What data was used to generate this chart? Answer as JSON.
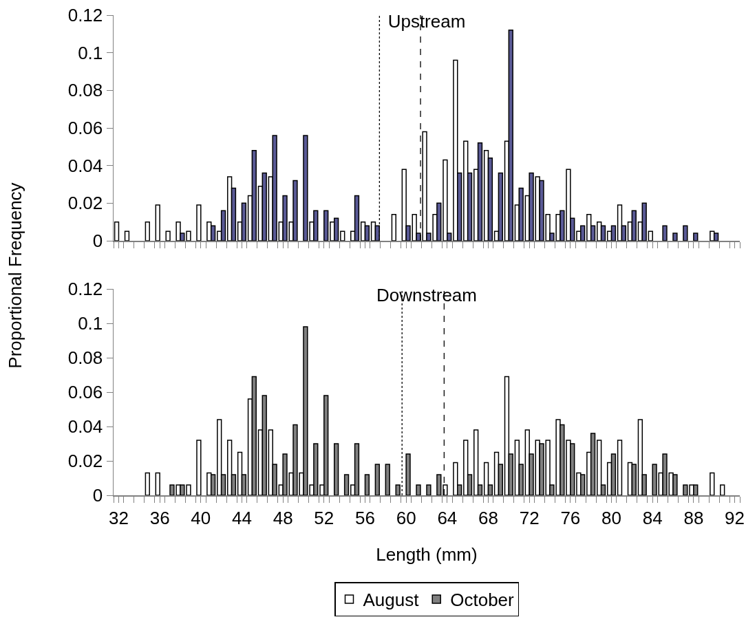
{
  "chart_data": [
    {
      "type": "bar",
      "title": "Upstream",
      "ylabel": "Proportional Frequency",
      "x": [
        32,
        33,
        34,
        35,
        36,
        37,
        38,
        39,
        40,
        41,
        42,
        43,
        44,
        45,
        46,
        47,
        48,
        49,
        50,
        51,
        52,
        53,
        54,
        55,
        56,
        57,
        58,
        59,
        60,
        61,
        62,
        63,
        64,
        65,
        66,
        67,
        68,
        69,
        70,
        71,
        72,
        73,
        74,
        75,
        76,
        77,
        78,
        79,
        80,
        81,
        82,
        83,
        84,
        85,
        86,
        87,
        88,
        89,
        90
      ],
      "series": [
        {
          "color": "#ffffff",
          "values": [
            0.01,
            0.005,
            null,
            0.01,
            0.019,
            0.005,
            0.01,
            0.005,
            0.019,
            0.01,
            0.005,
            0.034,
            0.01,
            0.024,
            0.029,
            0.034,
            0.01,
            0.01,
            null,
            0.01,
            null,
            0.01,
            0.005,
            0.005,
            0.01,
            0.01,
            null,
            0.014,
            0.038,
            0.014,
            0.058,
            0.014,
            0.043,
            0.096,
            0.053,
            0.038,
            0.048,
            0.005,
            0.053,
            0.019,
            0.024,
            0.034,
            0.014,
            0.014,
            0.038,
            0.005,
            0.014,
            0.01,
            0.005,
            0.019,
            0.01,
            0.01,
            0.005,
            null,
            null,
            null,
            null,
            null,
            0.005
          ]
        },
        {
          "color": "#5a5a96",
          "values": [
            null,
            null,
            null,
            null,
            null,
            null,
            0.004,
            null,
            null,
            0.008,
            0.016,
            0.028,
            0.02,
            0.048,
            0.036,
            0.056,
            0.024,
            0.032,
            0.056,
            0.016,
            0.016,
            0.012,
            null,
            0.024,
            0.008,
            0.008,
            null,
            null,
            0.008,
            0.004,
            0.004,
            0.02,
            0.004,
            0.036,
            0.036,
            0.052,
            0.044,
            0.036,
            0.112,
            0.028,
            0.036,
            0.032,
            0.004,
            0.016,
            0.012,
            0.008,
            0.008,
            0.008,
            0.008,
            0.008,
            0.016,
            0.02,
            null,
            0.008,
            0.004,
            0.008,
            0.004,
            null,
            0.004
          ]
        }
      ],
      "xlim": [
        31.5,
        92.5
      ],
      "xticks": [
        {
          "value": 31.5,
          "label": null
        },
        32,
        {
          "value": 32.5,
          "label": null
        },
        {
          "value": 33.5,
          "label": null
        },
        {
          "value": 34.5,
          "label": null
        },
        {
          "value": 35.5,
          "label": null
        },
        36,
        {
          "value": 36.5,
          "label": null
        },
        {
          "value": 37.5,
          "label": null
        },
        {
          "value": 38.5,
          "label": null
        },
        {
          "value": 39.5,
          "label": null
        },
        40,
        {
          "value": 40.5,
          "label": null
        },
        {
          "value": 41.5,
          "label": null
        },
        {
          "value": 42.5,
          "label": null
        },
        {
          "value": 43.5,
          "label": null
        },
        44,
        {
          "value": 44.5,
          "label": null
        },
        {
          "value": 45.5,
          "label": null
        },
        {
          "value": 46.5,
          "label": null
        },
        {
          "value": 47.5,
          "label": null
        },
        48,
        {
          "value": 48.5,
          "label": null
        },
        {
          "value": 49.5,
          "label": null
        },
        {
          "value": 50.5,
          "label": null
        },
        {
          "value": 51.5,
          "label": null
        },
        52,
        {
          "value": 52.5,
          "label": null
        },
        {
          "value": 53.5,
          "label": null
        },
        {
          "value": 54.5,
          "label": null
        },
        {
          "value": 55.5,
          "label": null
        },
        56,
        {
          "value": 56.5,
          "label": null
        },
        {
          "value": 57.5,
          "label": null
        },
        {
          "value": 58.5,
          "label": null
        },
        {
          "value": 59.5,
          "label": null
        },
        60,
        {
          "value": 60.5,
          "label": null
        },
        {
          "value": 61.5,
          "label": null
        },
        {
          "value": 62.5,
          "label": null
        },
        {
          "value": 63.5,
          "label": null
        },
        64,
        {
          "value": 64.5,
          "label": null
        },
        {
          "value": 65.5,
          "label": null
        },
        {
          "value": 66.5,
          "label": null
        },
        {
          "value": 67.5,
          "label": null
        },
        68,
        {
          "value": 68.5,
          "label": null
        },
        {
          "value": 69.5,
          "label": null
        },
        {
          "value": 70.5,
          "label": null
        },
        {
          "value": 71.5,
          "label": null
        },
        72,
        {
          "value": 72.5,
          "label": null
        },
        {
          "value": 73.5,
          "label": null
        },
        {
          "value": 74.5,
          "label": null
        },
        {
          "value": 75.5,
          "label": null
        },
        76,
        {
          "value": 76.5,
          "label": null
        },
        {
          "value": 77.5,
          "label": null
        },
        {
          "value": 78.5,
          "label": null
        },
        {
          "value": 79.5,
          "label": null
        },
        80,
        {
          "value": 80.5,
          "label": null
        },
        {
          "value": 81.5,
          "label": null
        },
        {
          "value": 82.5,
          "label": null
        },
        {
          "value": 83.5,
          "label": null
        },
        84,
        {
          "value": 84.5,
          "label": null
        },
        {
          "value": 85.5,
          "label": null
        },
        {
          "value": 86.5,
          "label": null
        },
        {
          "value": 87.5,
          "label": null
        },
        88,
        {
          "value": 88.5,
          "label": null
        },
        {
          "value": 89.5,
          "label": null
        },
        {
          "value": 90.5,
          "label": null
        },
        {
          "value": 91.5,
          "label": null
        },
        92,
        {
          "value": 92.5,
          "label": null
        }
      ],
      "ylim": [
        0,
        0.12
      ],
      "yticks": [
        0,
        0.02,
        0.04,
        0.06,
        0.08,
        0.1,
        0.12
      ],
      "tick_labels": "y",
      "grid": false,
      "ref_lines": [
        {
          "axis": "x",
          "value": 57.4,
          "color": "#000000",
          "line_style": "dotted"
        },
        {
          "axis": "x",
          "value": 61.4,
          "color": "#000000",
          "line_style": "dashed"
        }
      ]
    },
    {
      "type": "bar",
      "title": "Downstream",
      "xlabel": "Length (mm)",
      "x": [
        35,
        36,
        37,
        38,
        39,
        40,
        41,
        42,
        43,
        44,
        45,
        46,
        47,
        48,
        49,
        50,
        51,
        52,
        53,
        54,
        55,
        56,
        57,
        58,
        59,
        60,
        61,
        62,
        63,
        64,
        65,
        66,
        67,
        68,
        69,
        70,
        71,
        72,
        73,
        74,
        75,
        76,
        77,
        78,
        79,
        80,
        81,
        82,
        83,
        84,
        85,
        86,
        87,
        88,
        89,
        90,
        91
      ],
      "series": [
        {
          "name": "August",
          "color": "#ffffff",
          "values": [
            0.013,
            0.013,
            null,
            0.006,
            0.006,
            0.032,
            0.013,
            0.044,
            0.032,
            0.025,
            0.056,
            0.038,
            0.038,
            0.006,
            0.013,
            0.013,
            0.006,
            0.006,
            null,
            null,
            0.006,
            null,
            null,
            null,
            null,
            null,
            null,
            null,
            null,
            0.006,
            0.019,
            0.032,
            0.038,
            0.019,
            0.025,
            0.069,
            0.032,
            0.038,
            0.032,
            0.032,
            0.044,
            0.032,
            0.013,
            0.025,
            0.032,
            0.019,
            0.032,
            0.019,
            0.044,
            null,
            0.013,
            0.013,
            null,
            0.006,
            null,
            0.013,
            0.006
          ]
        },
        {
          "name": "October",
          "color": "#808080",
          "values": [
            null,
            null,
            0.006,
            0.006,
            null,
            null,
            0.012,
            0.012,
            0.012,
            0.012,
            0.069,
            0.058,
            0.018,
            0.024,
            0.041,
            0.098,
            0.03,
            0.058,
            0.03,
            0.012,
            0.03,
            0.012,
            0.018,
            0.018,
            0.006,
            0.024,
            0.006,
            0.006,
            0.012,
            null,
            0.006,
            0.012,
            0.006,
            0.006,
            0.018,
            0.024,
            0.018,
            0.024,
            0.03,
            0.006,
            0.041,
            0.03,
            0.012,
            0.036,
            0.006,
            0.024,
            null,
            0.018,
            0.012,
            0.018,
            0.024,
            0.012,
            0.006,
            0.006,
            null,
            null,
            null
          ]
        }
      ],
      "xlim": [
        31.5,
        92.5
      ],
      "xticks": [
        {
          "value": 31.5,
          "label": null
        },
        32,
        {
          "value": 32.5,
          "label": null
        },
        {
          "value": 33.5,
          "label": null
        },
        {
          "value": 34.5,
          "label": null
        },
        {
          "value": 35.5,
          "label": null
        },
        36,
        {
          "value": 36.5,
          "label": null
        },
        {
          "value": 37.5,
          "label": null
        },
        {
          "value": 38.5,
          "label": null
        },
        {
          "value": 39.5,
          "label": null
        },
        40,
        {
          "value": 40.5,
          "label": null
        },
        {
          "value": 41.5,
          "label": null
        },
        {
          "value": 42.5,
          "label": null
        },
        {
          "value": 43.5,
          "label": null
        },
        44,
        {
          "value": 44.5,
          "label": null
        },
        {
          "value": 45.5,
          "label": null
        },
        {
          "value": 46.5,
          "label": null
        },
        {
          "value": 47.5,
          "label": null
        },
        48,
        {
          "value": 48.5,
          "label": null
        },
        {
          "value": 49.5,
          "label": null
        },
        {
          "value": 50.5,
          "label": null
        },
        {
          "value": 51.5,
          "label": null
        },
        52,
        {
          "value": 52.5,
          "label": null
        },
        {
          "value": 53.5,
          "label": null
        },
        {
          "value": 54.5,
          "label": null
        },
        {
          "value": 55.5,
          "label": null
        },
        56,
        {
          "value": 56.5,
          "label": null
        },
        {
          "value": 57.5,
          "label": null
        },
        {
          "value": 58.5,
          "label": null
        },
        {
          "value": 59.5,
          "label": null
        },
        60,
        {
          "value": 60.5,
          "label": null
        },
        {
          "value": 61.5,
          "label": null
        },
        {
          "value": 62.5,
          "label": null
        },
        {
          "value": 63.5,
          "label": null
        },
        64,
        {
          "value": 64.5,
          "label": null
        },
        {
          "value": 65.5,
          "label": null
        },
        {
          "value": 66.5,
          "label": null
        },
        {
          "value": 67.5,
          "label": null
        },
        68,
        {
          "value": 68.5,
          "label": null
        },
        {
          "value": 69.5,
          "label": null
        },
        {
          "value": 70.5,
          "label": null
        },
        {
          "value": 71.5,
          "label": null
        },
        72,
        {
          "value": 72.5,
          "label": null
        },
        {
          "value": 73.5,
          "label": null
        },
        {
          "value": 74.5,
          "label": null
        },
        {
          "value": 75.5,
          "label": null
        },
        76,
        {
          "value": 76.5,
          "label": null
        },
        {
          "value": 77.5,
          "label": null
        },
        {
          "value": 78.5,
          "label": null
        },
        {
          "value": 79.5,
          "label": null
        },
        80,
        {
          "value": 80.5,
          "label": null
        },
        {
          "value": 81.5,
          "label": null
        },
        {
          "value": 82.5,
          "label": null
        },
        {
          "value": 83.5,
          "label": null
        },
        84,
        {
          "value": 84.5,
          "label": null
        },
        {
          "value": 85.5,
          "label": null
        },
        {
          "value": 86.5,
          "label": null
        },
        {
          "value": 87.5,
          "label": null
        },
        88,
        {
          "value": 88.5,
          "label": null
        },
        {
          "value": 89.5,
          "label": null
        },
        {
          "value": 90.5,
          "label": null
        },
        {
          "value": 91.5,
          "label": null
        },
        92,
        {
          "value": 92.5,
          "label": null
        }
      ],
      "ylim": [
        0,
        0.12
      ],
      "yticks": [
        0,
        0.02,
        0.04,
        0.06,
        0.08,
        0.1,
        0.12
      ],
      "grid": false,
      "legend": "bottom",
      "ref_lines": [
        {
          "axis": "x",
          "value": 59.6,
          "color": "#000000",
          "line_style": "dotted"
        },
        {
          "axis": "x",
          "value": 63.7,
          "color": "#000000",
          "line_style": "dashed"
        }
      ]
    }
  ]
}
